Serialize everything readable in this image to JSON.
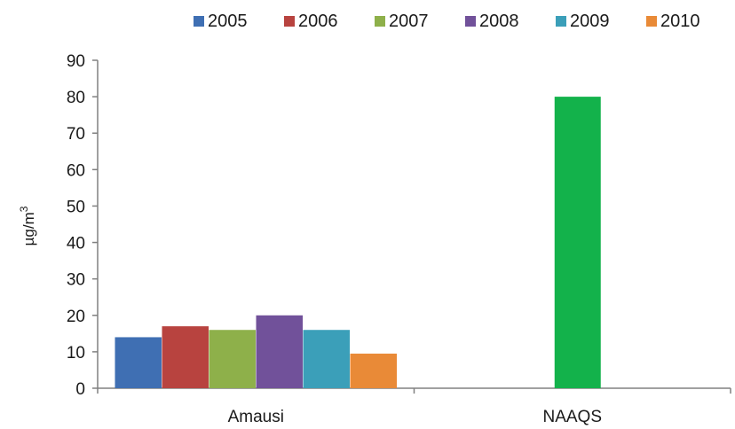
{
  "chart_data": {
    "type": "bar",
    "categories": [
      "Amausi",
      "NAAQS"
    ],
    "series": [
      {
        "name": "2005",
        "color": "#3f6fb3",
        "values": [
          14,
          null
        ]
      },
      {
        "name": "2006",
        "color": "#b8433f",
        "values": [
          17,
          null
        ]
      },
      {
        "name": "2007",
        "color": "#8eb04a",
        "values": [
          16,
          null
        ]
      },
      {
        "name": "2008",
        "color": "#71519a",
        "values": [
          20,
          null
        ]
      },
      {
        "name": "2009",
        "color": "#3b9fb9",
        "values": [
          16,
          null
        ]
      },
      {
        "name": "2010",
        "color": "#e98a37",
        "values": [
          9.5,
          null
        ]
      }
    ],
    "reference_bar": {
      "category": "NAAQS",
      "value": 80,
      "color": "#13b24b"
    },
    "ylabel_base": "µg/m",
    "ylabel_sup": "3",
    "ylim": [
      0,
      90
    ],
    "yticks": [
      "0",
      "10",
      "20",
      "30",
      "40",
      "50",
      "60",
      "70",
      "80",
      "90"
    ],
    "legend_position": "top",
    "grid": false
  }
}
